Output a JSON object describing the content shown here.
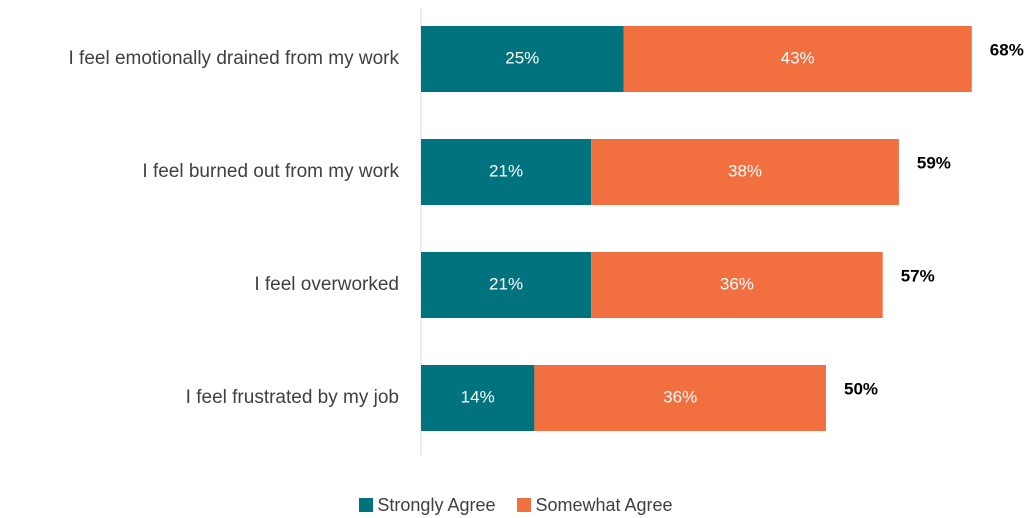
{
  "chart_data": {
    "type": "bar",
    "orientation": "horizontal",
    "stacked": true,
    "categories": [
      "I feel emotionally drained from my work",
      "I feel burned out from my work",
      "I feel overworked",
      "I feel frustrated by my job"
    ],
    "series": [
      {
        "name": "Strongly Agree",
        "color": "#01737F",
        "values": [
          25,
          21,
          21,
          14
        ],
        "labels": [
          "25%",
          "21%",
          "21%",
          "14%"
        ]
      },
      {
        "name": "Somewhat Agree",
        "color": "#F26F40",
        "values": [
          43,
          38,
          36,
          36
        ],
        "labels": [
          "43%",
          "38%",
          "36%",
          "36%"
        ]
      }
    ],
    "totals": [
      68,
      59,
      57,
      50
    ],
    "total_labels": [
      "68%",
      "59%",
      "57%",
      "50%"
    ],
    "xlim": [
      0,
      70
    ],
    "grid": false,
    "legend_position": "bottom"
  }
}
